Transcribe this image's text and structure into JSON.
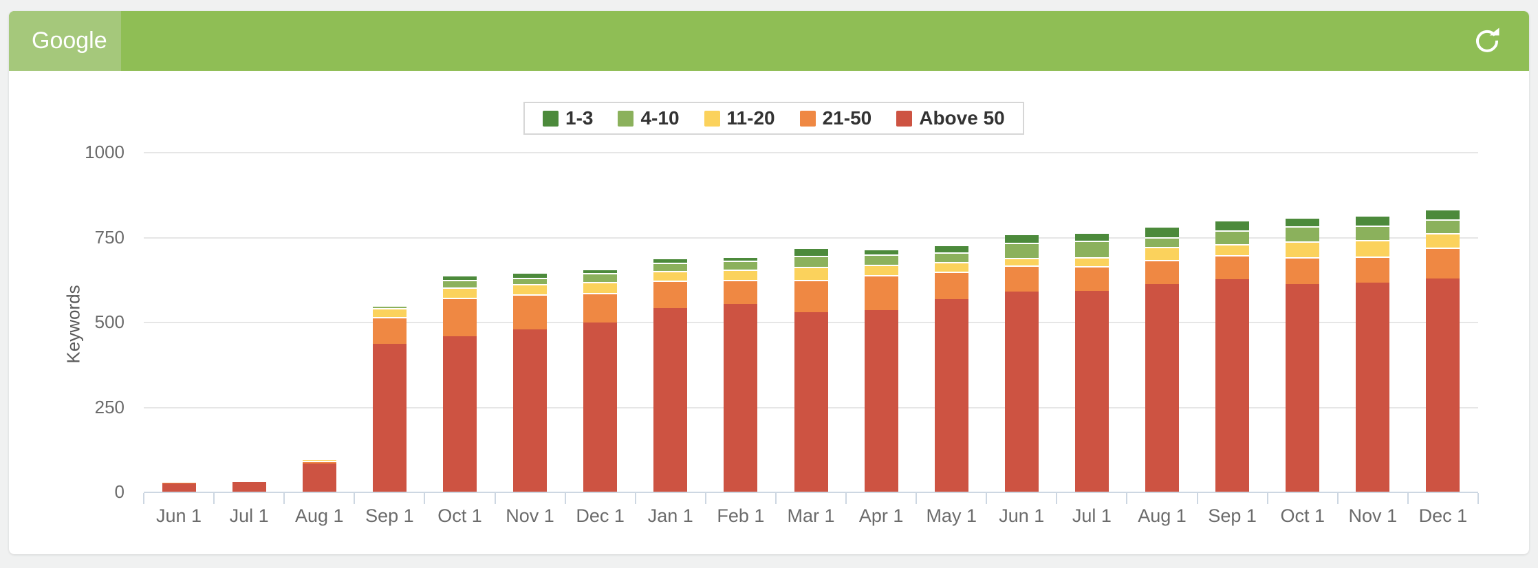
{
  "header": {
    "title": "Google"
  },
  "chart_data": {
    "type": "bar",
    "stacked": true,
    "title": "",
    "xlabel": "",
    "ylabel": "Keywords",
    "ylim": [
      0,
      1000
    ],
    "yticks": [
      0,
      250,
      500,
      750,
      1000
    ],
    "grid": true,
    "legend_position": "top-center",
    "categories": [
      "Jun 1",
      "Jul 1",
      "Aug 1",
      "Sep 1",
      "Oct 1",
      "Nov 1",
      "Dec 1",
      "Jan 1",
      "Feb 1",
      "Mar 1",
      "Apr 1",
      "May 1",
      "Jun 1",
      "Jul 1",
      "Aug 1",
      "Sep 1",
      "Oct 1",
      "Nov 1",
      "Dec 1"
    ],
    "series": [
      {
        "name": "1-3",
        "color": "#4c8a3b",
        "values": [
          0,
          0,
          0,
          0,
          13,
          15,
          13,
          13,
          13,
          25,
          17,
          22,
          27,
          25,
          33,
          31,
          27,
          30,
          30
        ]
      },
      {
        "name": "4-10",
        "color": "#8bb15c",
        "values": [
          0,
          0,
          0,
          8,
          23,
          18,
          26,
          25,
          27,
          32,
          29,
          27,
          44,
          49,
          28,
          40,
          45,
          44,
          41
        ]
      },
      {
        "name": "11-20",
        "color": "#fbd25c",
        "values": [
          0,
          0,
          7,
          26,
          31,
          30,
          31,
          28,
          29,
          38,
          32,
          29,
          22,
          25,
          38,
          33,
          46,
          47,
          42
        ]
      },
      {
        "name": "21-50",
        "color": "#ef8843",
        "values": [
          5,
          0,
          8,
          80,
          112,
          105,
          88,
          82,
          72,
          96,
          103,
          81,
          77,
          73,
          71,
          70,
          78,
          77,
          91
        ]
      },
      {
        "name": "Above 50",
        "color": "#cd5342",
        "values": [
          25,
          28,
          83,
          435,
          458,
          477,
          498,
          540,
          552,
          528,
          534,
          567,
          590,
          592,
          612,
          626,
          612,
          616,
          628
        ]
      }
    ],
    "colors": {
      "header_green": "#8fbe55",
      "header_tab_green": "#a5c87b",
      "axis_line": "#cdd7e2",
      "gridline": "#e6e6e6"
    }
  }
}
